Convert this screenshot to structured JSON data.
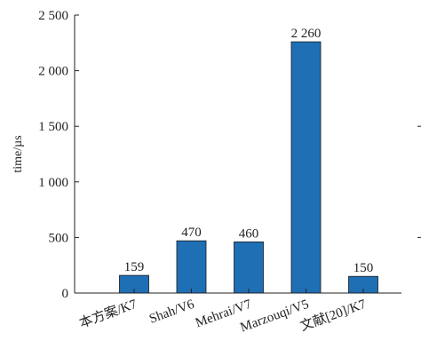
{
  "chart_data": {
    "type": "bar",
    "title": "",
    "xlabel": "",
    "ylabel": "time/µs",
    "categories": [
      "本方案/K7",
      "Shah/V6",
      "Mehrai/V7",
      "Marzouqi/V5",
      "文献[20]/K7"
    ],
    "values": [
      159,
      470,
      460,
      2260,
      150
    ],
    "data_labels": [
      "159",
      "470",
      "460",
      "2 260",
      "150"
    ],
    "ylim": [
      0,
      2500
    ],
    "y_ticks": [
      0,
      500,
      1000,
      1500,
      2000,
      2500
    ],
    "y_tick_labels": [
      "0",
      "500",
      "1 000",
      "1 500",
      "2 000",
      "2 500"
    ],
    "grid": false,
    "legend": "none",
    "colors": {
      "bar": "#1f6fb5",
      "axis": "#222222"
    }
  }
}
